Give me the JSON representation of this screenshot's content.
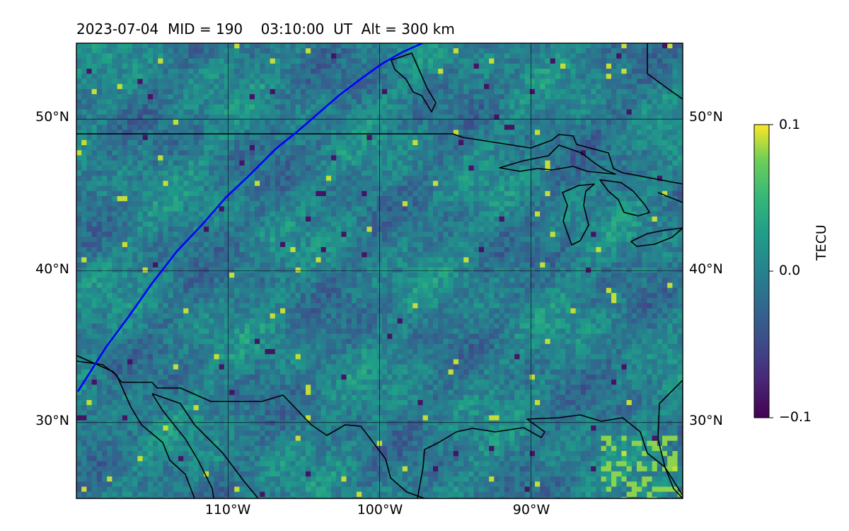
{
  "title": {
    "date": "2023-07-04",
    "mid": "MID = 190",
    "time": "03:10:00  UT",
    "alt": "Alt = 300 km",
    "full": "2023-07-04  MID = 190    03:10:00  UT  Alt = 300 km"
  },
  "map": {
    "projection": "plate carree",
    "lon_range": [
      -120,
      -80
    ],
    "lat_range": [
      25,
      55
    ],
    "gridlines": true,
    "lat_ticks": [
      {
        "value": 50,
        "label": "50°N"
      },
      {
        "value": 40,
        "label": "40°N"
      },
      {
        "value": 30,
        "label": "30°N"
      }
    ],
    "lon_ticks": [
      {
        "value": -110,
        "label": "110°W"
      },
      {
        "value": -100,
        "label": "100°W"
      },
      {
        "value": -90,
        "label": "90°W"
      }
    ],
    "features": [
      "coastlines",
      "country borders",
      "Great Lakes"
    ],
    "track_color": "#0000ff"
  },
  "colorbar": {
    "label": "TECU",
    "colormap": "viridis",
    "vmin": -0.1,
    "vmax": 0.1,
    "ticks": [
      {
        "value": 0.1,
        "label": "0.1"
      },
      {
        "value": 0.0,
        "label": "0.0"
      },
      {
        "value": -0.1,
        "label": "−0.1"
      }
    ]
  }
}
